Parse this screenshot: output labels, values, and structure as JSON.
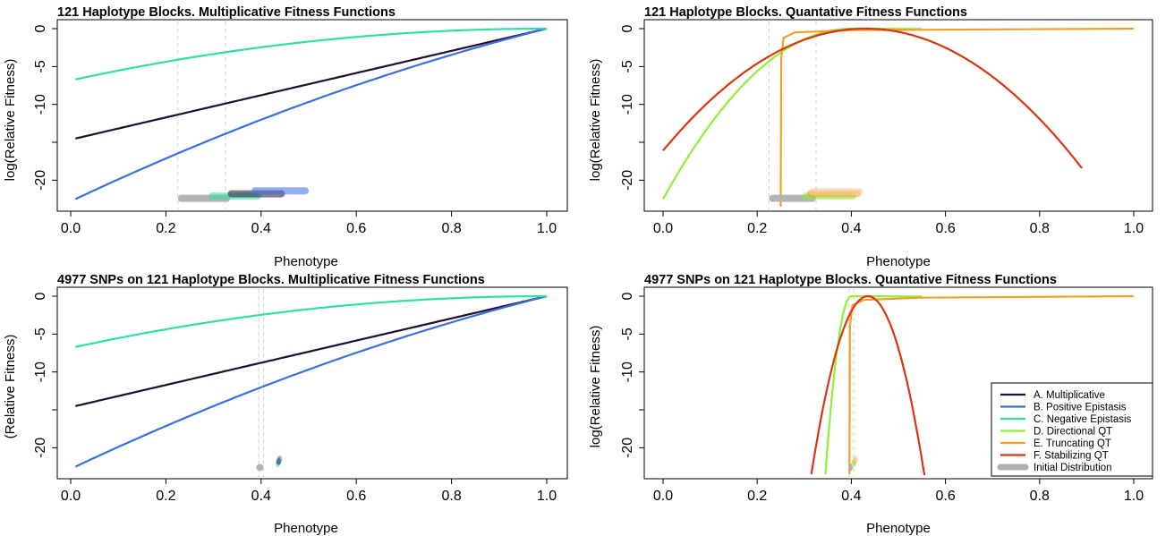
{
  "colors": {
    "A": "#1e0f33",
    "B": "#3b6fe0",
    "C": "#2ee0a4",
    "D": "#8ef03a",
    "E": "#f0a02a",
    "F": "#d93510",
    "initial": "#b0b0b0"
  },
  "legend": [
    {
      "key": "A",
      "label": "A. Multiplicative"
    },
    {
      "key": "B",
      "label": "B. Positive Epistasis"
    },
    {
      "key": "C",
      "label": "C. Negative Epistasis"
    },
    {
      "key": "D",
      "label": "D. Directional QT"
    },
    {
      "key": "E",
      "label": "E. Truncating QT"
    },
    {
      "key": "F",
      "label": "F. Stabilizing QT"
    },
    {
      "key": "initial",
      "label": "Initial Distribution"
    }
  ],
  "chart_data": [
    {
      "type": "line",
      "title": "121 Haplotype Blocks. Multiplicative Fitness Functions",
      "xlabel": "Phenotype",
      "ylabel": "log(Relative Fitness)",
      "xlim": [
        0,
        1
      ],
      "ylim": [
        -23.5,
        0
      ],
      "xticks": [
        "0.0",
        "0.2",
        "0.4",
        "0.6",
        "0.8",
        "1.0"
      ],
      "yticks": [
        "0",
        "-5",
        "-10",
        "-20"
      ],
      "vlines": [
        0.225,
        0.325
      ],
      "series": [
        {
          "key": "A",
          "kind": "multiplicative",
          "x": [
            0.01,
            1.0
          ],
          "y": [
            -14.5,
            0
          ]
        },
        {
          "key": "B",
          "kind": "positive",
          "x": [
            0.01,
            1.0
          ],
          "y": [
            -22.5,
            0
          ]
        },
        {
          "key": "C",
          "kind": "negative",
          "x": [
            0.01,
            1.0
          ],
          "y": [
            -6.7,
            0
          ]
        }
      ],
      "bars": [
        {
          "key": "initial",
          "x": [
            0.225,
            0.335
          ],
          "y": -22.4
        },
        {
          "key": "C",
          "x": [
            0.29,
            0.4
          ],
          "y": -22.1
        },
        {
          "key": "A",
          "x": [
            0.33,
            0.45
          ],
          "y": -21.8
        },
        {
          "key": "B",
          "x": [
            0.38,
            0.5
          ],
          "y": -21.4
        }
      ]
    },
    {
      "type": "line",
      "title": "121 Haplotype Blocks. Quantative Fitness Functions",
      "xlabel": "Phenotype",
      "ylabel": "log(Relative Fitness)",
      "xlim": [
        0,
        1
      ],
      "ylim": [
        -23.5,
        0
      ],
      "xticks": [
        "0.0",
        "0.2",
        "0.4",
        "0.6",
        "0.8",
        "1.0"
      ],
      "yticks": [
        "0",
        "-5",
        "-10",
        "-20"
      ],
      "vlines": [
        0.225,
        0.325
      ],
      "series": [
        {
          "key": "D",
          "kind": "directional",
          "x0": 0.0,
          "x1": 0.4,
          "xpeak": 0.4,
          "ystart": -22.5
        },
        {
          "key": "E",
          "kind": "truncating",
          "xcut": 0.25,
          "ybottom": -23.5,
          "x1": 1.0
        },
        {
          "key": "F",
          "kind": "stabilizing",
          "xpeak": 0.43,
          "x0": 0.0,
          "x1": 0.89,
          "ystart": -16.1
        }
      ],
      "bars": [
        {
          "key": "initial",
          "x": [
            0.225,
            0.325
          ],
          "y": -22.4
        },
        {
          "key": "D",
          "x": [
            0.295,
            0.41
          ],
          "y": -22.1
        },
        {
          "key": "E",
          "x": [
            0.305,
            0.42
          ],
          "y": -21.8
        },
        {
          "key": "E2",
          "x": [
            0.31,
            0.425
          ],
          "y": -21.5
        }
      ]
    },
    {
      "type": "line",
      "title": "4977 SNPs on 121 Haplotype Blocks. Multiplicative Fitness Functions",
      "xlabel": "Phenotype",
      "ylabel": "(Relative Fitness)",
      "xlim": [
        0,
        1
      ],
      "ylim": [
        -23.5,
        0
      ],
      "xticks": [
        "0.0",
        "0.2",
        "0.4",
        "0.6",
        "0.8",
        "1.0"
      ],
      "yticks": [
        "0",
        "-5",
        "-10",
        "-20"
      ],
      "vlines": [
        0.395,
        0.405
      ],
      "series": [
        {
          "key": "A",
          "kind": "multiplicative",
          "x": [
            0.01,
            1.0
          ],
          "y": [
            -14.5,
            0
          ]
        },
        {
          "key": "B",
          "kind": "positive",
          "x": [
            0.01,
            1.0
          ],
          "y": [
            -22.5,
            0
          ]
        },
        {
          "key": "C",
          "kind": "negative",
          "x": [
            0.01,
            1.0
          ],
          "y": [
            -6.7,
            0
          ]
        }
      ],
      "bars": [
        {
          "key": "initial",
          "x": [
            0.39,
            0.405
          ],
          "y": -22.6
        },
        {
          "key": "C",
          "x": [
            0.43,
            0.44
          ],
          "y": -22.1
        },
        {
          "key": "A",
          "x": [
            0.432,
            0.442
          ],
          "y": -21.8
        },
        {
          "key": "B",
          "x": [
            0.434,
            0.444
          ],
          "y": -21.5
        }
      ]
    },
    {
      "type": "line",
      "title": "4977 SNPs on 121 Haplotype Blocks. Quantative Fitness Functions",
      "xlabel": "Phenotype",
      "ylabel": "log(Relative Fitness)",
      "xlim": [
        0,
        1
      ],
      "ylim": [
        -23.5,
        0
      ],
      "xticks": [
        "0.0",
        "0.2",
        "0.4",
        "0.6",
        "0.8",
        "1.0"
      ],
      "yticks": [
        "0",
        "-5",
        "-10",
        "-20"
      ],
      "vlines": [
        0.395,
        0.405
      ],
      "series": [
        {
          "key": "D",
          "kind": "directional",
          "x0": 0.345,
          "x1": 0.4,
          "xpeak": 0.4,
          "ystart": -23.5
        },
        {
          "key": "E",
          "kind": "truncating",
          "xcut": 0.396,
          "ybottom": -23.5,
          "x1": 1.0
        },
        {
          "key": "F",
          "kind": "stabilizing",
          "xpeak": 0.435,
          "x0": 0.315,
          "x1": 0.557,
          "ystart": -23.5
        }
      ],
      "bars": [
        {
          "key": "initial",
          "x": [
            0.395,
            0.403
          ],
          "y": -22.6
        },
        {
          "key": "D",
          "x": [
            0.4,
            0.41
          ],
          "y": -22.1
        },
        {
          "key": "E",
          "x": [
            0.402,
            0.412
          ],
          "y": -21.8
        },
        {
          "key": "E2",
          "x": [
            0.404,
            0.414
          ],
          "y": -21.5
        }
      ]
    }
  ]
}
